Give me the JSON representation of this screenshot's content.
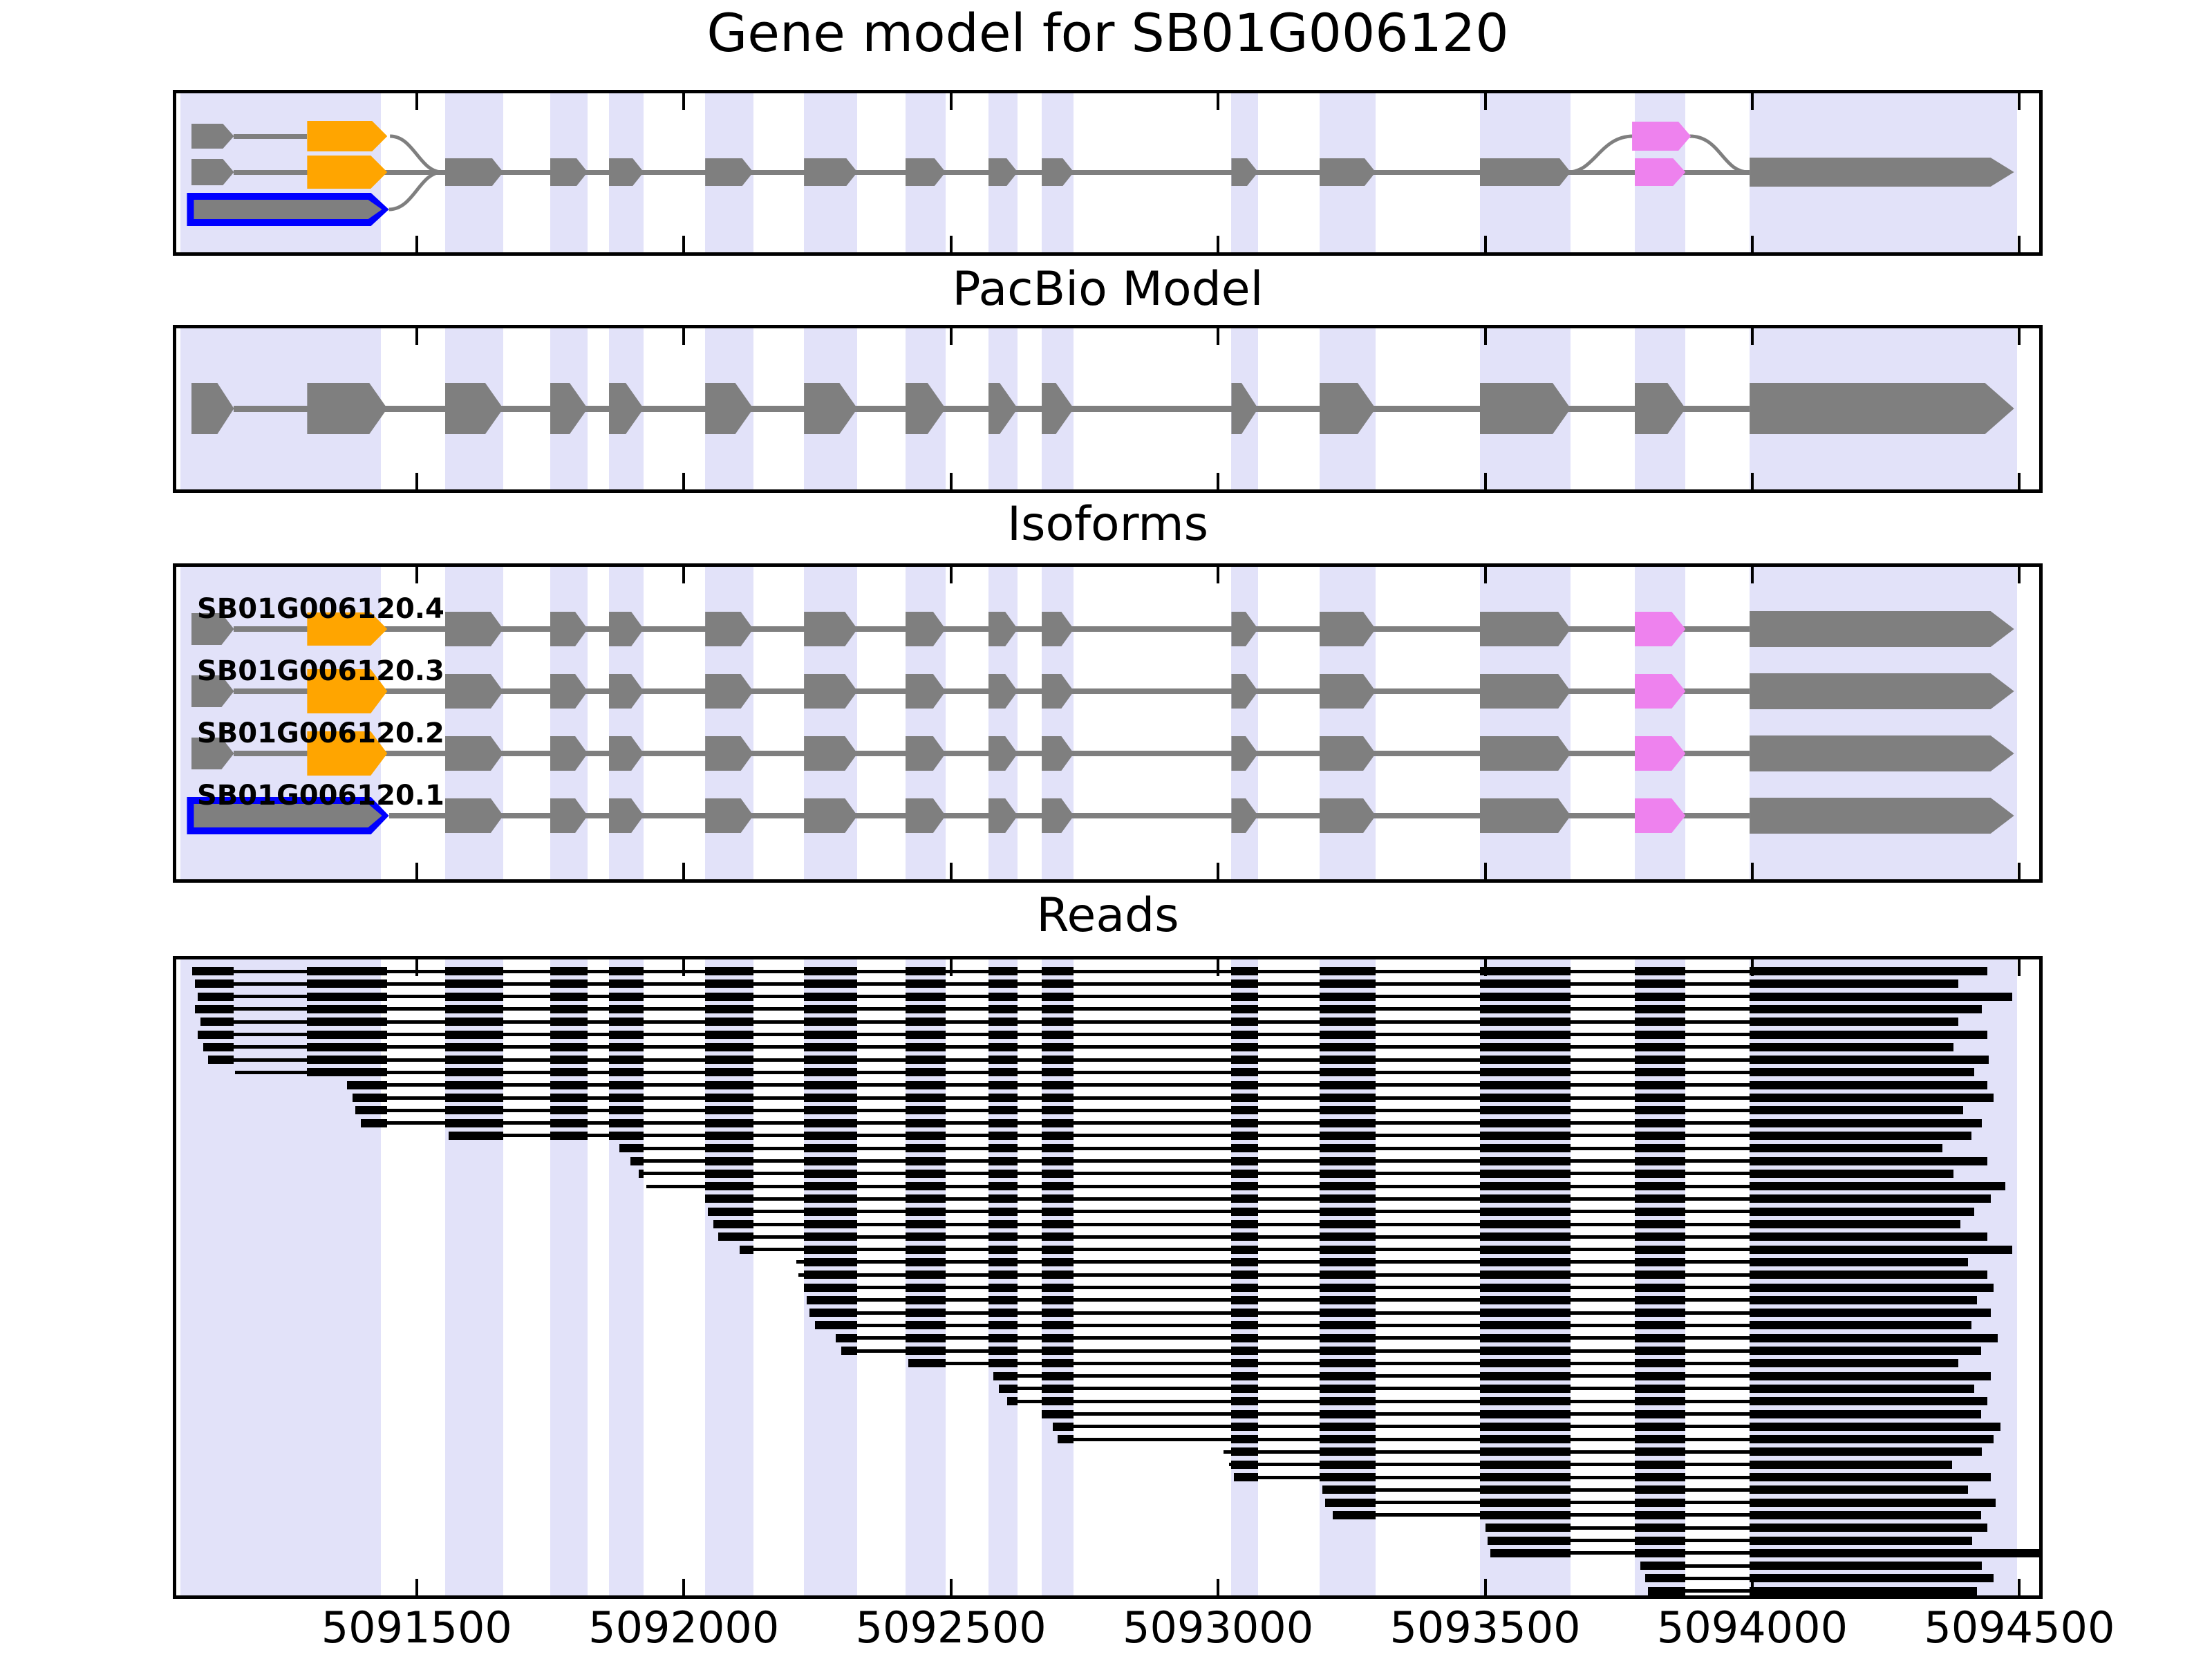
{
  "titles": {
    "gene_model": "Gene model for SB01G006120",
    "pacbio": "PacBio Model",
    "isoforms": "Isoforms",
    "reads": "Reads"
  },
  "colors": {
    "band": "#e2e2f9",
    "exon_gray": "#7f7f7f",
    "exon_orange": "#ffa500",
    "exon_violet": "#ee82ee",
    "highlight_blue": "#0000ff",
    "intron_line": "#7f7f7f",
    "read_black": "#000000",
    "axis_black": "#000000"
  },
  "chart_data": {
    "type": "other",
    "subtype": "gene-model-annotation-tracks",
    "title": "Gene model for SB01G006120",
    "panel_titles": [
      "Gene model for SB01G006120",
      "PacBio Model",
      "Isoforms",
      "Reads"
    ],
    "x_domain": [
      5091050,
      5094537
    ],
    "x_ticks": [
      5091500,
      5092000,
      5092500,
      5093000,
      5093500,
      5094000,
      5094500
    ],
    "x_tick_labels": [
      "5091500",
      "5092000",
      "5092500",
      "5093000",
      "5093500",
      "5094000",
      "5094500"
    ],
    "grid": "exon-position bands (lavender)",
    "legend_position": "none",
    "bands": [
      [
        5091058,
        5091433
      ],
      [
        5091553,
        5091662
      ],
      [
        5091750,
        5091820
      ],
      [
        5091860,
        5091925
      ],
      [
        5092040,
        5092130
      ],
      [
        5092225,
        5092325
      ],
      [
        5092415,
        5092490
      ],
      [
        5092570,
        5092625
      ],
      [
        5092670,
        5092730
      ],
      [
        5093025,
        5093075
      ],
      [
        5093190,
        5093295
      ],
      [
        5093490,
        5093660
      ],
      [
        5093780,
        5093875
      ],
      [
        5093995,
        5094495
      ]
    ],
    "first_exon_a": [
      5091078,
      5091158
    ],
    "first_exon_b": [
      5091295,
      5091445
    ],
    "merged_first_exon": [
      5091070,
      5091448
    ],
    "body_exons": [
      [
        5091553,
        5091662
      ],
      [
        5091750,
        5091820
      ],
      [
        5091860,
        5091925
      ],
      [
        5092040,
        5092130
      ],
      [
        5092225,
        5092325
      ],
      [
        5092415,
        5092490
      ],
      [
        5092570,
        5092625
      ],
      [
        5092670,
        5092730
      ],
      [
        5093025,
        5093075
      ],
      [
        5093190,
        5093295
      ],
      [
        5093490,
        5093660
      ]
    ],
    "violet_exon": [
      5093780,
      5093875
    ],
    "violet_exon_alt": [
      5093775,
      5093885
    ],
    "last_exon": [
      5093995,
      5094490
    ],
    "isoforms": [
      {
        "label": "SB01G006120.4",
        "first": "orange-small"
      },
      {
        "label": "SB01G006120.3",
        "first": "orange-large"
      },
      {
        "label": "SB01G006120.2",
        "first": "orange-large"
      },
      {
        "label": "SB01G006120.1",
        "first": "blue-merged"
      }
    ],
    "reads": [
      [
        5091080,
        5094440
      ],
      [
        5091085,
        5094385
      ],
      [
        5091090,
        5094487
      ],
      [
        5091085,
        5094430
      ],
      [
        5091095,
        5094385
      ],
      [
        5091090,
        5094440
      ],
      [
        5091100,
        5094377
      ],
      [
        5091110,
        5094442
      ],
      [
        5091160,
        5094415
      ],
      [
        5091370,
        5094440
      ],
      [
        5091380,
        5094452
      ],
      [
        5091385,
        5094395
      ],
      [
        5091395,
        5094430
      ],
      [
        5091560,
        5094410
      ],
      [
        5091880,
        5094356
      ],
      [
        5091900,
        5094440
      ],
      [
        5091915,
        5094377
      ],
      [
        5091930,
        5094474
      ],
      [
        5092040,
        5094446
      ],
      [
        5092045,
        5094415
      ],
      [
        5092055,
        5094390
      ],
      [
        5092065,
        5094440
      ],
      [
        5092105,
        5094487
      ],
      [
        5092210,
        5094404
      ],
      [
        5092215,
        5094440
      ],
      [
        5092225,
        5094452
      ],
      [
        5092230,
        5094420
      ],
      [
        5092235,
        5094446
      ],
      [
        5092245,
        5094410
      ],
      [
        5092285,
        5094460
      ],
      [
        5092295,
        5094428
      ],
      [
        5092420,
        5094385
      ],
      [
        5092580,
        5094446
      ],
      [
        5092590,
        5094415
      ],
      [
        5092605,
        5094440
      ],
      [
        5092670,
        5094428
      ],
      [
        5092690,
        5094465
      ],
      [
        5092700,
        5094452
      ],
      [
        5093010,
        5094430
      ],
      [
        5093020,
        5094374
      ],
      [
        5093030,
        5094446
      ],
      [
        5093195,
        5094404
      ],
      [
        5093200,
        5094456
      ],
      [
        5093215,
        5094428
      ],
      [
        5093500,
        5094440
      ],
      [
        5093505,
        5094412
      ],
      [
        5093510,
        5094537
      ],
      [
        5093790,
        5094430
      ],
      [
        5093800,
        5094452
      ],
      [
        5093805,
        5094420
      ]
    ]
  }
}
